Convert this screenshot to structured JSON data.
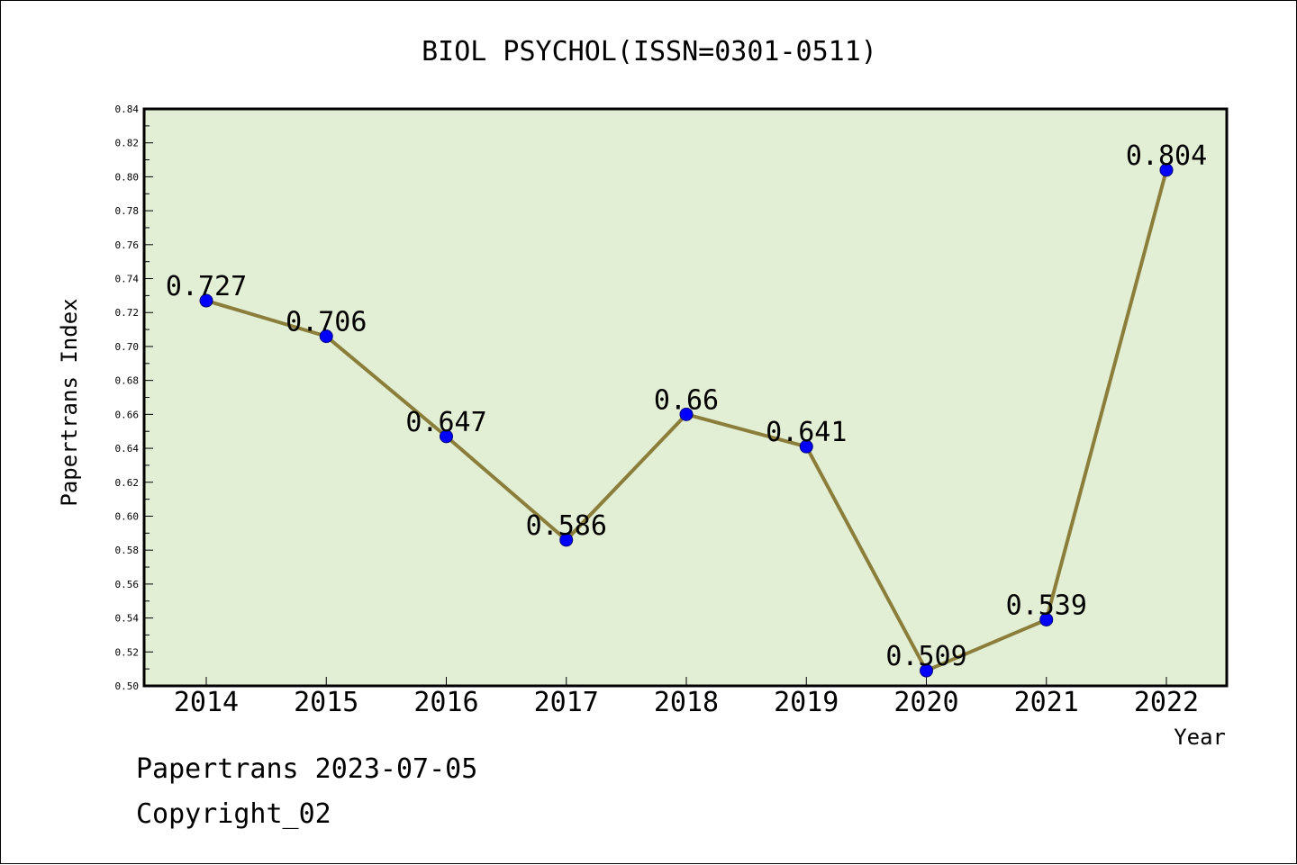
{
  "chart_data": {
    "type": "line",
    "title": "BIOL PSYCHOL(ISSN=0301-0511)",
    "xlabel": "Year",
    "ylabel": "Papertrans Index",
    "categories": [
      "2014",
      "2015",
      "2016",
      "2017",
      "2018",
      "2019",
      "2020",
      "2021",
      "2022"
    ],
    "series": [
      {
        "values": [
          0.727,
          0.706,
          0.647,
          0.586,
          0.66,
          0.641,
          0.509,
          0.539,
          0.804
        ]
      }
    ],
    "data_labels": [
      "0.727",
      "0.706",
      "0.647",
      "0.586",
      "0.66",
      "0.641",
      "0.509",
      "0.539",
      "0.804"
    ],
    "ylim": [
      0.5,
      0.84
    ],
    "y_major_ticks": [
      "0.50",
      "0.52",
      "0.54",
      "0.56",
      "0.58",
      "0.60",
      "0.62",
      "0.64",
      "0.66",
      "0.68",
      "0.70",
      "0.72",
      "0.74",
      "0.76",
      "0.78",
      "0.80",
      "0.82",
      "0.84"
    ],
    "grid": false,
    "legend": "none",
    "colors": {
      "plot_background": "#e2efd5",
      "line": "#8b7d3a",
      "marker": "#0000ff"
    }
  },
  "footer": {
    "date_line": "Papertrans 2023-07-05",
    "copyright_line": "Copyright_02"
  }
}
